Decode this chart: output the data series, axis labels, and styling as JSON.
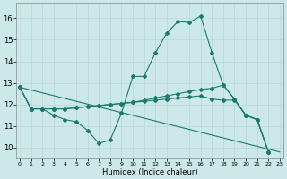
{
  "background_color": "#cce8e8",
  "grid_color": "#b8d8d8",
  "line_color": "#1a7a6e",
  "xlabel": "Humidex (Indice chaleur)",
  "xlim": [
    -0.3,
    23.3
  ],
  "ylim": [
    9.5,
    16.7
  ],
  "yticks": [
    10,
    11,
    12,
    13,
    14,
    15,
    16
  ],
  "xticks": [
    0,
    1,
    2,
    3,
    4,
    5,
    6,
    7,
    8,
    9,
    10,
    11,
    12,
    13,
    14,
    15,
    16,
    17,
    18,
    19,
    20,
    21,
    22,
    23
  ],
  "series": [
    {
      "x": [
        0,
        1,
        2,
        3,
        4,
        5,
        6,
        7,
        8,
        9,
        10,
        11,
        12,
        13,
        14,
        15,
        16,
        17,
        18,
        19,
        20,
        21,
        22,
        23
      ],
      "y": [
        12.8,
        11.8,
        11.8,
        11.5,
        11.3,
        11.2,
        10.8,
        10.2,
        10.35,
        11.6,
        13.3,
        13.3,
        14.4,
        15.3,
        15.85,
        15.8,
        16.1,
        14.4,
        12.9,
        12.25,
        11.5,
        11.3,
        9.8,
        null
      ]
    },
    {
      "x": [
        0,
        1,
        2,
        3,
        4,
        5,
        6,
        7,
        8,
        9,
        10,
        11,
        12,
        13,
        14,
        15,
        16,
        17,
        18,
        19,
        20,
        21,
        22,
        23
      ],
      "y": [
        12.8,
        11.8,
        11.8,
        11.8,
        11.8,
        11.85,
        11.9,
        11.95,
        12.0,
        12.05,
        12.1,
        12.2,
        12.3,
        12.4,
        12.5,
        12.6,
        12.7,
        12.75,
        12.9,
        12.25,
        11.5,
        11.3,
        9.8,
        null
      ]
    },
    {
      "x": [
        0,
        1,
        2,
        3,
        4,
        5,
        6,
        7,
        8,
        9,
        10,
        11,
        12,
        13,
        14,
        15,
        16,
        17,
        18,
        19,
        20,
        21,
        22,
        23
      ],
      "y": [
        12.8,
        11.8,
        11.8,
        11.8,
        11.8,
        11.85,
        11.9,
        11.95,
        12.0,
        12.05,
        12.1,
        12.15,
        12.2,
        12.25,
        12.3,
        12.35,
        12.4,
        12.25,
        12.2,
        12.2,
        11.5,
        11.3,
        9.8,
        null
      ]
    },
    {
      "x": [
        0,
        23
      ],
      "y": [
        12.8,
        9.8
      ]
    }
  ]
}
